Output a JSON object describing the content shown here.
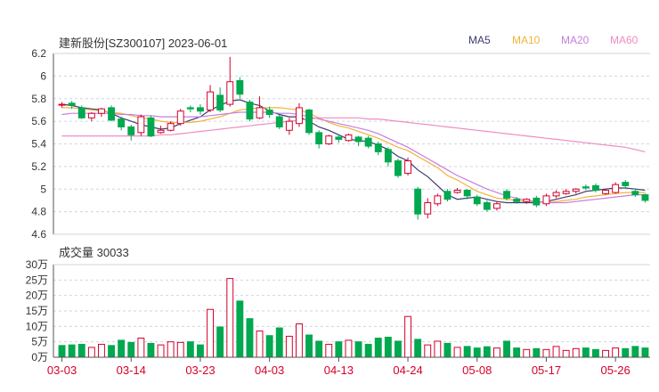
{
  "header": {
    "title": "建新股份[SZ300107] 2023-06-01"
  },
  "legend": [
    {
      "label": "MA5",
      "color": "#3b3b6e"
    },
    {
      "label": "MA10",
      "color": "#f2b33a"
    },
    {
      "label": "MA20",
      "color": "#c77ee0"
    },
    {
      "label": "MA60",
      "color": "#f08cc0"
    }
  ],
  "volume_header": {
    "label": "成交量 30033"
  },
  "colors": {
    "up": "#d6002b",
    "down": "#00a84f",
    "grid": "#cfd6de",
    "axis": "#555555"
  },
  "chart_data": [
    {
      "type": "candlestick",
      "title": "建新股份[SZ300107] 2023-06-01",
      "ylim": [
        4.6,
        6.2
      ],
      "yticks": [
        "6.2",
        "6",
        "5.8",
        "5.6",
        "5.4",
        "5.2",
        "5",
        "4.8",
        "4.6"
      ],
      "ytick_values": [
        6.2,
        6.0,
        5.8,
        5.6,
        5.4,
        5.2,
        5.0,
        4.8,
        4.6
      ],
      "xticks": [
        "03-03",
        "03-14",
        "03-23",
        "04-03",
        "04-13",
        "04-24",
        "05-08",
        "05-17",
        "05-26"
      ],
      "xtick_index": [
        0,
        7,
        14,
        21,
        28,
        35,
        42,
        49,
        56
      ],
      "candles": [
        [
          5.75,
          5.75,
          5.77,
          5.72
        ],
        [
          5.76,
          5.74,
          5.78,
          5.71
        ],
        [
          5.72,
          5.63,
          5.74,
          5.62
        ],
        [
          5.63,
          5.67,
          5.68,
          5.6
        ],
        [
          5.67,
          5.71,
          5.72,
          5.64
        ],
        [
          5.72,
          5.61,
          5.74,
          5.6
        ],
        [
          5.62,
          5.55,
          5.64,
          5.52
        ],
        [
          5.55,
          5.48,
          5.57,
          5.43
        ],
        [
          5.5,
          5.64,
          5.66,
          5.47
        ],
        [
          5.63,
          5.47,
          5.65,
          5.46
        ],
        [
          5.5,
          5.52,
          5.56,
          5.49
        ],
        [
          5.52,
          5.58,
          5.6,
          5.51
        ],
        [
          5.58,
          5.69,
          5.71,
          5.56
        ],
        [
          5.72,
          5.71,
          5.74,
          5.68
        ],
        [
          5.72,
          5.69,
          5.75,
          5.66
        ],
        [
          5.7,
          5.86,
          5.92,
          5.68
        ],
        [
          5.83,
          5.7,
          5.9,
          5.68
        ],
        [
          5.75,
          5.95,
          6.17,
          5.73
        ],
        [
          5.96,
          5.84,
          5.99,
          5.8
        ],
        [
          5.77,
          5.62,
          5.79,
          5.6
        ],
        [
          5.63,
          5.72,
          5.82,
          5.62
        ],
        [
          5.7,
          5.66,
          5.73,
          5.63
        ],
        [
          5.64,
          5.55,
          5.66,
          5.53
        ],
        [
          5.52,
          5.6,
          5.63,
          5.48
        ],
        [
          5.58,
          5.72,
          5.76,
          5.55
        ],
        [
          5.7,
          5.5,
          5.71,
          5.48
        ],
        [
          5.5,
          5.4,
          5.52,
          5.36
        ],
        [
          5.4,
          5.47,
          5.48,
          5.39
        ],
        [
          5.46,
          5.44,
          5.48,
          5.41
        ],
        [
          5.43,
          5.48,
          5.49,
          5.42
        ],
        [
          5.46,
          5.42,
          5.47,
          5.38
        ],
        [
          5.45,
          5.38,
          5.47,
          5.36
        ],
        [
          5.4,
          5.33,
          5.42,
          5.3
        ],
        [
          5.35,
          5.24,
          5.37,
          5.2
        ],
        [
          5.25,
          5.12,
          5.27,
          5.1
        ],
        [
          5.14,
          5.25,
          5.28,
          5.12
        ],
        [
          5.0,
          4.78,
          5.02,
          4.73
        ],
        [
          4.78,
          4.88,
          4.92,
          4.74
        ],
        [
          4.87,
          4.94,
          4.96,
          4.85
        ],
        [
          4.98,
          4.91,
          5.0,
          4.89
        ],
        [
          4.97,
          4.99,
          5.01,
          4.96
        ],
        [
          4.99,
          4.94,
          5.0,
          4.91
        ],
        [
          4.93,
          4.87,
          4.95,
          4.85
        ],
        [
          4.88,
          4.82,
          4.9,
          4.8
        ],
        [
          4.83,
          4.87,
          4.89,
          4.81
        ],
        [
          4.98,
          4.92,
          5.0,
          4.9
        ],
        [
          4.91,
          4.89,
          4.93,
          4.87
        ],
        [
          4.89,
          4.91,
          4.92,
          4.87
        ],
        [
          4.92,
          4.86,
          4.94,
          4.84
        ],
        [
          4.87,
          4.94,
          4.96,
          4.85
        ],
        [
          4.94,
          4.97,
          4.99,
          4.92
        ],
        [
          4.96,
          4.98,
          5.0,
          4.95
        ],
        [
          4.98,
          5.0,
          5.01,
          4.96
        ],
        [
          5.02,
          5.01,
          5.04,
          4.99
        ],
        [
          5.03,
          4.99,
          5.05,
          4.97
        ],
        [
          4.96,
          4.99,
          5.0,
          4.95
        ],
        [
          4.97,
          5.04,
          5.06,
          4.96
        ],
        [
          5.06,
          5.03,
          5.08,
          5.01
        ],
        [
          4.98,
          4.95,
          5.0,
          4.93
        ],
        [
          4.95,
          4.9,
          4.96,
          4.88
        ]
      ],
      "ma_series": [
        {
          "name": "MA5",
          "values": [
            5.75,
            5.74,
            5.72,
            5.71,
            5.7,
            5.67,
            5.63,
            5.6,
            5.57,
            5.55,
            5.53,
            5.54,
            5.58,
            5.61,
            5.64,
            5.7,
            5.74,
            5.78,
            5.79,
            5.76,
            5.74,
            5.69,
            5.66,
            5.64,
            5.64,
            5.6,
            5.55,
            5.52,
            5.48,
            5.44,
            5.43,
            5.42,
            5.39,
            5.35,
            5.29,
            5.25,
            5.17,
            5.11,
            5.03,
            4.95,
            4.91,
            4.92,
            4.93,
            4.91,
            4.89,
            4.88,
            4.88,
            4.88,
            4.88,
            4.89,
            4.91,
            4.93,
            4.95,
            4.98,
            4.99,
            5.0,
            5.01,
            5.01,
            5.0,
            4.99
          ]
        },
        {
          "name": "MA10",
          "values": [
            5.72,
            5.72,
            5.71,
            5.7,
            5.69,
            5.68,
            5.67,
            5.65,
            5.63,
            5.62,
            5.6,
            5.59,
            5.59,
            5.59,
            5.6,
            5.62,
            5.64,
            5.67,
            5.7,
            5.71,
            5.72,
            5.72,
            5.72,
            5.71,
            5.7,
            5.67,
            5.63,
            5.59,
            5.56,
            5.54,
            5.51,
            5.48,
            5.45,
            5.41,
            5.37,
            5.34,
            5.29,
            5.24,
            5.19,
            5.12,
            5.08,
            5.03,
            4.98,
            4.95,
            4.92,
            4.91,
            4.9,
            4.89,
            4.89,
            4.88,
            4.89,
            4.9,
            4.91,
            4.93,
            4.94,
            4.95,
            4.96,
            4.97,
            4.97,
            4.97
          ]
        },
        {
          "name": "MA20",
          "values": [
            5.66,
            5.67,
            5.67,
            5.67,
            5.67,
            5.67,
            5.66,
            5.66,
            5.65,
            5.65,
            5.64,
            5.64,
            5.64,
            5.64,
            5.64,
            5.65,
            5.66,
            5.67,
            5.68,
            5.68,
            5.68,
            5.68,
            5.67,
            5.67,
            5.66,
            5.64,
            5.62,
            5.6,
            5.58,
            5.56,
            5.54,
            5.52,
            5.49,
            5.45,
            5.41,
            5.37,
            5.32,
            5.27,
            5.22,
            5.17,
            5.12,
            5.08,
            5.04,
            5.0,
            4.97,
            4.94,
            4.92,
            4.9,
            4.89,
            4.88,
            4.88,
            4.88,
            4.89,
            4.9,
            4.91,
            4.92,
            4.93,
            4.94,
            4.95,
            4.95
          ]
        },
        {
          "name": "MA60",
          "values": [
            5.47,
            5.47,
            5.47,
            5.47,
            5.47,
            5.47,
            5.47,
            5.47,
            5.47,
            5.47,
            5.48,
            5.48,
            5.49,
            5.5,
            5.51,
            5.52,
            5.53,
            5.54,
            5.55,
            5.56,
            5.57,
            5.58,
            5.59,
            5.6,
            5.61,
            5.62,
            5.63,
            5.63,
            5.63,
            5.63,
            5.63,
            5.62,
            5.62,
            5.61,
            5.6,
            5.59,
            5.58,
            5.57,
            5.56,
            5.55,
            5.54,
            5.53,
            5.52,
            5.51,
            5.5,
            5.49,
            5.48,
            5.47,
            5.46,
            5.45,
            5.44,
            5.43,
            5.42,
            5.41,
            5.4,
            5.39,
            5.38,
            5.37,
            5.35,
            5.33
          ]
        }
      ]
    },
    {
      "type": "bar",
      "title": "成交量 30033",
      "unit": "万",
      "ylim": [
        0,
        300000
      ],
      "yticks": [
        "30万",
        "25万",
        "20万",
        "15万",
        "10万",
        "5万",
        "0万"
      ],
      "ytick_values": [
        300000,
        250000,
        200000,
        150000,
        100000,
        50000,
        0
      ],
      "values": [
        38000,
        40000,
        42000,
        32000,
        42000,
        38000,
        55000,
        48000,
        62000,
        45000,
        40000,
        50000,
        48000,
        50000,
        40000,
        155000,
        98000,
        255000,
        182000,
        125000,
        85000,
        70000,
        95000,
        68000,
        108000,
        72000,
        52000,
        42000,
        50000,
        55000,
        50000,
        42000,
        62000,
        65000,
        52000,
        132000,
        58000,
        40000,
        52000,
        45000,
        32000,
        35000,
        30000,
        34000,
        30000,
        52000,
        30000,
        25000,
        28000,
        25000,
        35000,
        22000,
        28000,
        30000,
        25000,
        22000,
        30000,
        28000,
        35000,
        30033
      ],
      "directions": [
        "down",
        "down",
        "down",
        "up",
        "up",
        "down",
        "down",
        "down",
        "up",
        "down",
        "up",
        "up",
        "up",
        "down",
        "down",
        "up",
        "down",
        "up",
        "down",
        "down",
        "up",
        "down",
        "down",
        "up",
        "up",
        "down",
        "down",
        "up",
        "down",
        "up",
        "down",
        "down",
        "down",
        "down",
        "down",
        "up",
        "down",
        "up",
        "up",
        "down",
        "up",
        "down",
        "down",
        "down",
        "up",
        "down",
        "down",
        "up",
        "down",
        "up",
        "up",
        "up",
        "up",
        "down",
        "down",
        "up",
        "up",
        "down",
        "down",
        "down"
      ]
    }
  ]
}
